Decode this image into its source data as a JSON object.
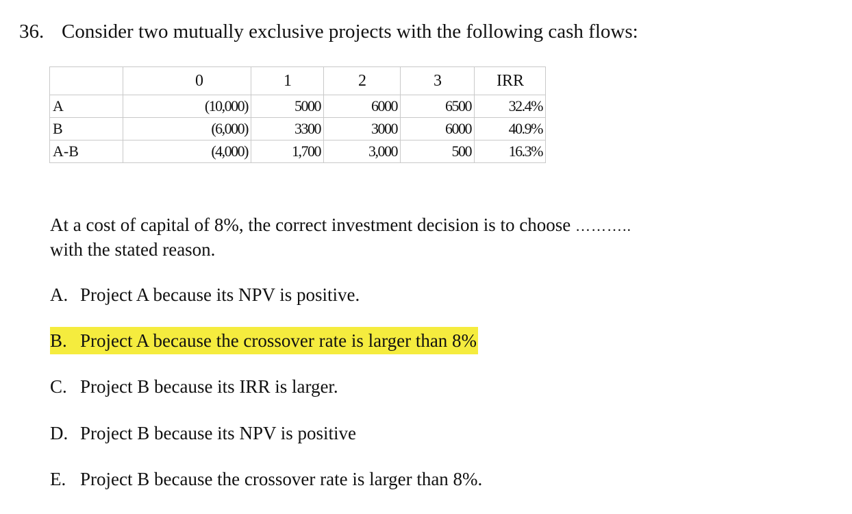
{
  "question": {
    "number": "36.",
    "text": "Consider two mutually exclusive projects with the following cash flows:"
  },
  "table": {
    "header": [
      "",
      "0",
      "1",
      "2",
      "3",
      "IRR"
    ],
    "rows": [
      {
        "label": "A",
        "c0": "(10,000)",
        "c1": "5000",
        "c2": "6000",
        "c3": "6500",
        "irr": "32.4%"
      },
      {
        "label": "B",
        "c0": "(6,000)",
        "c1": "3300",
        "c2": "3000",
        "c3": "6000",
        "irr": "40.9%"
      },
      {
        "label": "A-B",
        "c0": "(4,000)",
        "c1": "1,700",
        "c2": "3,000",
        "c3": "500",
        "irr": "16.3%"
      }
    ]
  },
  "stem": {
    "line1": "At a cost of capital of 8%, the correct investment decision is to choose",
    "blank": "………..",
    "line2": "with the stated reason."
  },
  "options": [
    {
      "letter": "A.",
      "text": "Project A because its NPV is positive."
    },
    {
      "letter": "B.",
      "text": "Project A because the crossover rate is larger than 8%"
    },
    {
      "letter": "C.",
      "text": "Project B because its IRR is larger."
    },
    {
      "letter": "D.",
      "text": "Project B because its NPV is positive"
    },
    {
      "letter": "E.",
      "text": "Project B because the crossover rate is larger than 8%."
    }
  ],
  "highlight_color": "#f5ec3e"
}
